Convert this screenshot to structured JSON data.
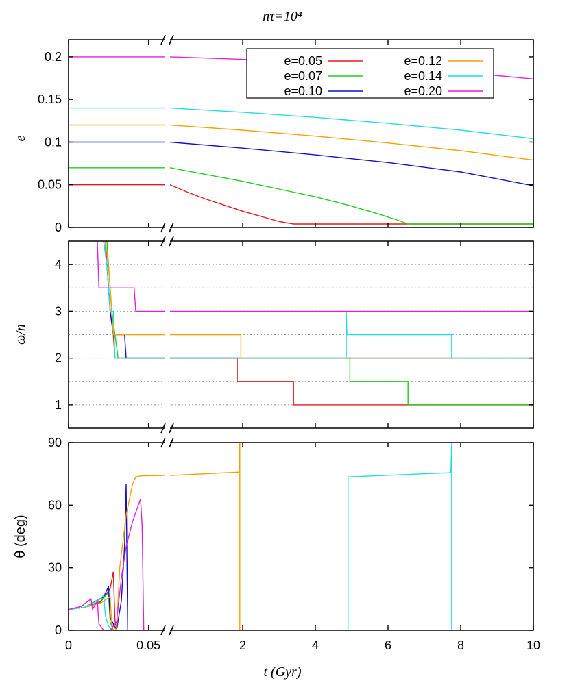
{
  "figure": {
    "title": "nτ=10⁴",
    "xlabel": "t (Gyr)"
  },
  "chart_data": [
    {
      "type": "line",
      "panel": "eccentricity",
      "ylabel": "e",
      "ylim": [
        0,
        0.22
      ],
      "yticks": [
        "0",
        "0.05",
        "0.1",
        "0.15",
        "0.2"
      ],
      "xaxis": {
        "broken": true,
        "segment1": [
          0,
          0.06
        ],
        "segment2": [
          0,
          10
        ],
        "ticks": [
          "0",
          "0.05",
          "2",
          "4",
          "6",
          "8",
          "10"
        ]
      },
      "grid": false,
      "legend": {
        "placement": "top-right",
        "columns": 2
      },
      "series": [
        {
          "name": "e=0.05",
          "color": "#e41a1c",
          "early": [
            [
              0,
              0.05
            ],
            [
              0.06,
              0.05
            ]
          ],
          "late": [
            [
              0,
              0.05
            ],
            [
              0.5,
              0.041
            ],
            [
              1.0,
              0.033
            ],
            [
              1.5,
              0.026
            ],
            [
              2.0,
              0.019
            ],
            [
              2.5,
              0.013
            ],
            [
              3.0,
              0.007
            ],
            [
              3.4,
              0.004
            ],
            [
              10,
              0.004
            ]
          ]
        },
        {
          "name": "e=0.07",
          "color": "#22cc22",
          "early": [
            [
              0,
              0.07
            ],
            [
              0.06,
              0.07
            ]
          ],
          "late": [
            [
              0,
              0.07
            ],
            [
              1.0,
              0.062
            ],
            [
              2.0,
              0.054
            ],
            [
              3.0,
              0.045
            ],
            [
              4.0,
              0.036
            ],
            [
              5.0,
              0.025
            ],
            [
              5.8,
              0.015
            ],
            [
              6.3,
              0.008
            ],
            [
              6.55,
              0.004
            ],
            [
              10,
              0.004
            ]
          ]
        },
        {
          "name": "e=0.10",
          "color": "#1010c0",
          "early": [
            [
              0,
              0.1
            ],
            [
              0.06,
              0.1
            ]
          ],
          "late": [
            [
              0,
              0.1
            ],
            [
              2.0,
              0.093
            ],
            [
              4.0,
              0.085
            ],
            [
              6.0,
              0.076
            ],
            [
              8.0,
              0.065
            ],
            [
              10,
              0.049
            ]
          ]
        },
        {
          "name": "e=0.12",
          "color": "#f5a000",
          "early": [
            [
              0,
              0.12
            ],
            [
              0.06,
              0.12
            ]
          ],
          "late": [
            [
              0,
              0.12
            ],
            [
              2.0,
              0.114
            ],
            [
              4.0,
              0.107
            ],
            [
              6.0,
              0.099
            ],
            [
              8.0,
              0.09
            ],
            [
              10,
              0.079
            ]
          ]
        },
        {
          "name": "e=0.14",
          "color": "#22dddd",
          "early": [
            [
              0,
              0.14
            ],
            [
              0.06,
              0.14
            ]
          ],
          "late": [
            [
              0,
              0.14
            ],
            [
              2.0,
              0.135
            ],
            [
              4.0,
              0.129
            ],
            [
              6.0,
              0.122
            ],
            [
              8.0,
              0.114
            ],
            [
              10,
              0.104
            ]
          ]
        },
        {
          "name": "e=0.20",
          "color": "#e020e0",
          "early": [
            [
              0,
              0.2
            ],
            [
              0.06,
              0.2
            ]
          ],
          "late": [
            [
              0,
              0.2
            ],
            [
              2.0,
              0.197
            ],
            [
              4.0,
              0.193
            ],
            [
              6.0,
              0.188
            ],
            [
              8.0,
              0.182
            ],
            [
              10,
              0.174
            ]
          ]
        }
      ]
    },
    {
      "type": "line",
      "panel": "spin",
      "ylabel": "ω/n",
      "ylim": [
        0.5,
        4.5
      ],
      "yticks": [
        "1",
        "2",
        "3",
        "4"
      ],
      "hgrid_dotted": [
        1,
        1.5,
        2,
        2.5,
        3,
        3.5,
        4
      ],
      "series": [
        {
          "name": "e=0.05",
          "color": "#e41a1c",
          "early": [
            [
              0.023,
              4.5
            ],
            [
              0.024,
              4.0
            ],
            [
              0.026,
              3.0
            ],
            [
              0.028,
              2.5
            ],
            [
              0.029,
              2.0
            ],
            [
              0.06,
              2.0
            ]
          ],
          "late": [
            [
              0,
              2.0
            ],
            [
              1.85,
              2.0
            ],
            [
              1.85,
              1.5
            ],
            [
              3.4,
              1.5
            ],
            [
              3.4,
              1.0
            ],
            [
              10,
              1.0
            ]
          ]
        },
        {
          "name": "e=0.07",
          "color": "#22cc22",
          "early": [
            [
              0.024,
              4.5
            ],
            [
              0.025,
              4.0
            ],
            [
              0.027,
              3.0
            ],
            [
              0.029,
              2.5
            ],
            [
              0.031,
              2.0
            ],
            [
              0.06,
              2.0
            ]
          ],
          "late": [
            [
              0,
              2.0
            ],
            [
              4.95,
              2.0
            ],
            [
              4.95,
              1.5
            ],
            [
              6.55,
              1.5
            ],
            [
              6.55,
              1.0
            ],
            [
              10,
              1.0
            ]
          ]
        },
        {
          "name": "e=0.10",
          "color": "#1010c0",
          "early": [
            [
              0.022,
              4.5
            ],
            [
              0.024,
              4.0
            ],
            [
              0.026,
              3.0
            ],
            [
              0.028,
              2.5
            ],
            [
              0.035,
              2.5
            ],
            [
              0.036,
              2.0
            ],
            [
              0.06,
              2.0
            ]
          ],
          "late": [
            [
              0,
              2.0
            ],
            [
              10,
              2.0
            ]
          ]
        },
        {
          "name": "e=0.12",
          "color": "#f5a000",
          "early": [
            [
              0.023,
              4.5
            ],
            [
              0.025,
              4.0
            ],
            [
              0.027,
              3.0
            ],
            [
              0.028,
              2.5
            ],
            [
              0.06,
              2.5
            ]
          ],
          "late": [
            [
              0,
              2.5
            ],
            [
              1.95,
              2.5
            ],
            [
              1.95,
              2.0
            ],
            [
              10,
              2.0
            ]
          ]
        },
        {
          "name": "e=0.14",
          "color": "#22dddd",
          "early": [
            [
              0.022,
              4.5
            ],
            [
              0.024,
              4.0
            ],
            [
              0.026,
              3.0
            ],
            [
              0.028,
              3.0
            ],
            [
              0.029,
              2.0
            ],
            [
              0.06,
              2.0
            ]
          ],
          "late": [
            [
              0,
              2.0
            ],
            [
              4.85,
              2.0
            ],
            [
              4.85,
              3.0
            ],
            [
              4.87,
              2.5
            ],
            [
              7.75,
              2.5
            ],
            [
              7.75,
              2.0
            ],
            [
              10,
              2.0
            ]
          ]
        },
        {
          "name": "e=0.20",
          "color": "#e020e0",
          "early": [
            [
              0.018,
              4.5
            ],
            [
              0.019,
              3.5
            ],
            [
              0.041,
              3.5
            ],
            [
              0.042,
              3.0
            ],
            [
              0.06,
              3.0
            ]
          ],
          "late": [
            [
              0,
              3.0
            ],
            [
              10,
              3.0
            ]
          ]
        }
      ]
    },
    {
      "type": "line",
      "panel": "obliquity",
      "ylabel": "θ (deg)",
      "ylim": [
        0,
        90
      ],
      "yticks": [
        "0",
        "30",
        "60",
        "90"
      ],
      "series": [
        {
          "name": "e=0.05",
          "color": "#e41a1c",
          "early": [
            [
              0,
              10
            ],
            [
              0.01,
              11
            ],
            [
              0.02,
              13.5
            ],
            [
              0.026,
              20
            ],
            [
              0.028,
              28
            ],
            [
              0.029,
              5
            ],
            [
              0.03,
              0
            ],
            [
              0.06,
              0
            ]
          ],
          "late": [
            [
              0,
              0
            ],
            [
              10,
              0
            ]
          ]
        },
        {
          "name": "e=0.07",
          "color": "#22cc22",
          "early": [
            [
              0,
              10
            ],
            [
              0.01,
              11
            ],
            [
              0.02,
              14
            ],
            [
              0.025,
              18
            ],
            [
              0.026,
              4
            ],
            [
              0.028,
              0
            ],
            [
              0.06,
              0
            ]
          ],
          "late": [
            [
              0,
              0
            ],
            [
              10,
              0
            ]
          ]
        },
        {
          "name": "e=0.10",
          "color": "#1010c0",
          "early": [
            [
              0,
              10
            ],
            [
              0.01,
              11
            ],
            [
              0.022,
              16
            ],
            [
              0.025,
              21
            ],
            [
              0.026,
              6
            ],
            [
              0.03,
              0
            ],
            [
              0.033,
              14
            ],
            [
              0.035,
              40
            ],
            [
              0.036,
              70
            ],
            [
              0.037,
              0
            ],
            [
              0.06,
              0
            ]
          ],
          "late": [
            [
              0,
              0
            ],
            [
              10,
              0
            ]
          ]
        },
        {
          "name": "e=0.12",
          "color": "#f5a000",
          "early": [
            [
              0,
              10
            ],
            [
              0.01,
              11
            ],
            [
              0.02,
              13
            ],
            [
              0.026,
              16
            ],
            [
              0.027,
              3
            ],
            [
              0.03,
              0
            ],
            [
              0.032,
              30
            ],
            [
              0.036,
              55
            ],
            [
              0.04,
              70
            ],
            [
              0.042,
              73.5
            ],
            [
              0.045,
              74
            ],
            [
              0.06,
              74.2
            ]
          ],
          "late": [
            [
              0,
              74.2
            ],
            [
              1.9,
              75.8
            ],
            [
              1.92,
              90
            ],
            [
              1.92,
              0
            ],
            [
              10,
              0
            ]
          ]
        },
        {
          "name": "e=0.14",
          "color": "#22dddd",
          "early": [
            [
              0,
              10
            ],
            [
              0.01,
              11
            ],
            [
              0.02,
              15
            ],
            [
              0.022,
              17
            ],
            [
              0.023,
              7
            ],
            [
              0.025,
              2
            ],
            [
              0.027,
              0
            ],
            [
              0.06,
              0
            ]
          ],
          "late": [
            [
              0,
              0
            ],
            [
              4.9,
              0
            ],
            [
              4.9,
              73.5
            ],
            [
              7.73,
              75.5
            ],
            [
              7.75,
              90
            ],
            [
              7.75,
              0
            ],
            [
              10,
              0
            ]
          ]
        },
        {
          "name": "e=0.20",
          "color": "#e020e0",
          "early": [
            [
              0,
              10
            ],
            [
              0.008,
              11.5
            ],
            [
              0.014,
              15
            ],
            [
              0.015,
              10
            ],
            [
              0.018,
              14
            ],
            [
              0.019,
              3
            ],
            [
              0.022,
              0
            ],
            [
              0.026,
              0
            ],
            [
              0.03,
              4
            ],
            [
              0.033,
              25
            ],
            [
              0.036,
              40
            ],
            [
              0.04,
              52
            ],
            [
              0.045,
              63
            ],
            [
              0.046,
              50
            ],
            [
              0.047,
              0
            ],
            [
              0.06,
              0
            ]
          ],
          "late": [
            [
              0,
              0
            ],
            [
              10,
              0
            ]
          ]
        }
      ]
    }
  ]
}
